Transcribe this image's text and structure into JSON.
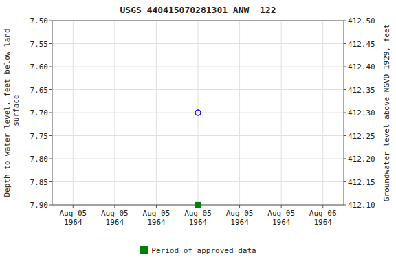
{
  "chart_data": {
    "type": "scatter",
    "title": "USGS 440415070281301 ANW  122",
    "ylabel": "Depth to water level, feet below land\n surface",
    "y2label": "Groundwater level above NGVD 1929, feet",
    "categories": [
      "Aug 05\n1964",
      "Aug 05\n1964",
      "Aug 05\n1964",
      "Aug 05\n1964",
      "Aug 05\n1964",
      "Aug 05\n1964",
      "Aug 06\n1964"
    ],
    "series": [
      {
        "color": "blue",
        "marker": "circle-open",
        "values": [
          null,
          null,
          null,
          7.7,
          null,
          null,
          null
        ]
      },
      {
        "name": "Period of approved data",
        "color": "#008000",
        "marker": "square",
        "values": [
          null,
          null,
          null,
          7.9,
          null,
          null,
          null
        ]
      }
    ],
    "ylim": [
      7.9,
      7.5
    ],
    "yticks": [
      {
        "value": 7.5,
        "label": "7.50"
      },
      7.55,
      {
        "value": 7.6,
        "label": "7.60"
      },
      7.65,
      {
        "value": 7.7,
        "label": "7.70"
      },
      7.75,
      {
        "value": 7.8,
        "label": "7.80"
      },
      7.85,
      {
        "value": 7.9,
        "label": "7.90"
      }
    ],
    "y2lim": [
      412.1,
      412.5
    ],
    "y2ticks": [
      {
        "value": 412.1,
        "label": "412.10"
      },
      412.15,
      {
        "value": 412.2,
        "label": "412.20"
      },
      412.25,
      {
        "value": 412.3,
        "label": "412.30"
      },
      412.35,
      {
        "value": 412.4,
        "label": "412.40"
      },
      412.45,
      {
        "value": 412.5,
        "label": "412.50"
      }
    ],
    "grid": true,
    "legend": "bottom"
  }
}
